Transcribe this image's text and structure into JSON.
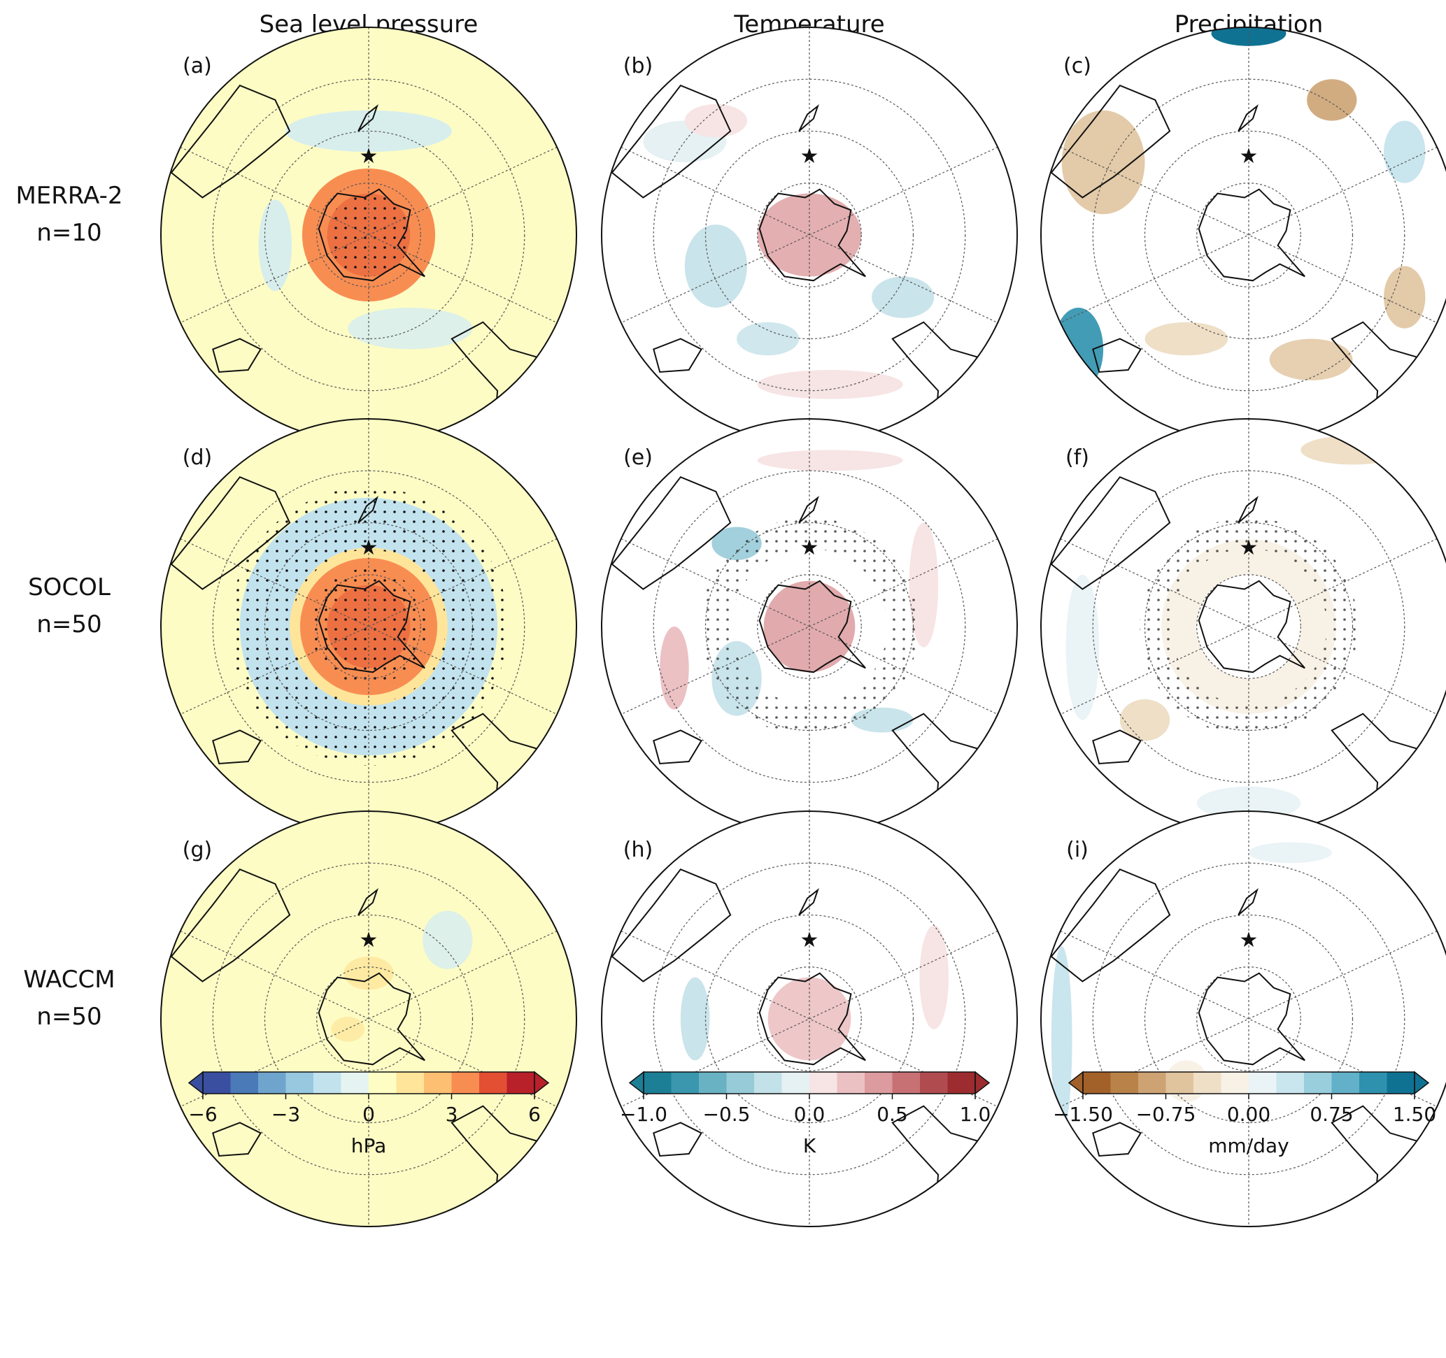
{
  "columns": [
    {
      "title": "Sea level pressure",
      "colorbar": {
        "unit": "hPa",
        "lim": [
          -6,
          6
        ],
        "ticks": [
          {
            "value": -6,
            "label": "−6"
          },
          {
            "value": -3,
            "label": "−3"
          },
          0,
          3,
          6
        ],
        "colors": [
          "#3a4fa0",
          "#4a7ab7",
          "#6fa5cd",
          "#98c8e0",
          "#c2e3ee",
          "#e6f4f1",
          "#fefdc4",
          "#fee59a",
          "#fdbf71",
          "#f88d52",
          "#e34f33",
          "#b8202a"
        ]
      }
    },
    {
      "title": "Temperature",
      "colorbar": {
        "unit": "K",
        "lim": [
          -1,
          1
        ],
        "ticks": [
          {
            "value": -1,
            "label": "−1.0"
          },
          {
            "value": -0.5,
            "label": "−0.5"
          },
          {
            "value": 0,
            "label": "0.0"
          },
          0.5,
          {
            "value": 1,
            "label": "1.0"
          }
        ],
        "colors": [
          "#1d7f95",
          "#3a97ad",
          "#69b2c4",
          "#98cbd8",
          "#c3e1e8",
          "#e5f1f3",
          "#f7e4e4",
          "#ecc1c3",
          "#dc9b9e",
          "#c87175",
          "#b04c50",
          "#9c2c2f"
        ]
      }
    },
    {
      "title": "Precipitation",
      "colorbar": {
        "unit": "mm/day",
        "lim": [
          -1.5,
          1.5
        ],
        "ticks": [
          {
            "value": -1.5,
            "label": "−1.50"
          },
          {
            "value": -0.75,
            "label": "−0.75"
          },
          {
            "value": 0,
            "label": "0.00"
          },
          {
            "value": 0.75,
            "label": "0.75"
          },
          {
            "value": 1.5,
            "label": "1.50"
          }
        ],
        "colors": [
          "#a3612a",
          "#b98249",
          "#cda373",
          "#e0c49e",
          "#eedfc6",
          "#f8f1e6",
          "#eaf3f6",
          "#c9e5ee",
          "#99cedd",
          "#63b1c8",
          "#2e91ad",
          "#0f7293"
        ]
      }
    }
  ],
  "rows": [
    {
      "model": "MERRA-2",
      "n": "n=10"
    },
    {
      "model": "SOCOL",
      "n": "n=50"
    },
    {
      "model": "WACCM",
      "n": "n=50"
    }
  ],
  "panels": [
    "(a)",
    "(b)",
    "(c)",
    "(d)",
    "(e)",
    "(f)",
    "(g)",
    "(h)",
    "(i)"
  ]
}
